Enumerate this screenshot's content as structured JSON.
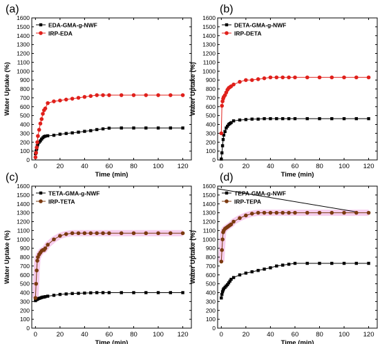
{
  "chart_data": [
    {
      "type": "line",
      "panel_label": "(a)",
      "xlabel": "Time (min)",
      "ylabel": "Water Uptake (%)",
      "xlim": [
        -3,
        127
      ],
      "ylim": [
        0,
        1600
      ],
      "xticks": [
        0,
        20,
        40,
        60,
        80,
        100,
        120
      ],
      "yticks": [
        0,
        100,
        200,
        300,
        400,
        500,
        600,
        700,
        800,
        900,
        1000,
        1100,
        1200,
        1300,
        1400,
        1500,
        1600
      ],
      "legend_position": "top-left",
      "series": [
        {
          "name": "EDA-GMA-g-NWF",
          "color": "#000000",
          "marker": "square",
          "x": [
            0,
            0.5,
            1,
            1.5,
            2,
            3,
            4,
            5,
            6,
            7,
            8,
            10,
            15,
            20,
            25,
            30,
            35,
            40,
            45,
            50,
            55,
            60,
            70,
            80,
            90,
            100,
            110,
            120
          ],
          "y": [
            70,
            100,
            125,
            160,
            180,
            200,
            215,
            235,
            250,
            262,
            268,
            272,
            278,
            290,
            298,
            305,
            313,
            322,
            330,
            342,
            350,
            358,
            360,
            360,
            360,
            360,
            360,
            360
          ]
        },
        {
          "name": "IRP-EDA",
          "color": "#e0201b",
          "marker": "circle",
          "x": [
            0,
            0.5,
            1,
            1.5,
            2,
            3,
            4,
            5,
            6,
            7,
            8,
            10,
            15,
            20,
            25,
            30,
            35,
            40,
            45,
            50,
            55,
            60,
            70,
            80,
            90,
            100,
            110,
            120
          ],
          "y": [
            30,
            80,
            140,
            200,
            270,
            340,
            410,
            460,
            520,
            560,
            580,
            640,
            660,
            670,
            680,
            690,
            700,
            710,
            720,
            730,
            730,
            730,
            730,
            730,
            730,
            730,
            730,
            730
          ]
        }
      ]
    },
    {
      "type": "line",
      "panel_label": "(b)",
      "xlabel": "Time (min)",
      "ylabel": "Water Uptake (%)",
      "xlim": [
        -3,
        127
      ],
      "ylim": [
        0,
        1600
      ],
      "xticks": [
        0,
        20,
        40,
        60,
        80,
        100,
        120
      ],
      "yticks": [
        0,
        100,
        200,
        300,
        400,
        500,
        600,
        700,
        800,
        900,
        1000,
        1100,
        1200,
        1300,
        1400,
        1500,
        1600
      ],
      "legend_position": "top-left",
      "series": [
        {
          "name": "DETA-GMA-g-NWF",
          "color": "#000000",
          "marker": "square",
          "x": [
            0,
            0.5,
            1,
            1.5,
            2,
            3,
            4,
            5,
            6,
            7,
            8,
            10,
            15,
            20,
            25,
            30,
            35,
            40,
            45,
            50,
            55,
            60,
            70,
            80,
            90,
            100,
            110,
            120
          ],
          "y": [
            10,
            80,
            160,
            230,
            280,
            320,
            360,
            380,
            400,
            410,
            420,
            440,
            450,
            455,
            460,
            460,
            465,
            465,
            465,
            465,
            465,
            465,
            465,
            465,
            465,
            465,
            465,
            465
          ]
        },
        {
          "name": "IRP-DETA",
          "color": "#e0201b",
          "marker": "circle",
          "x": [
            0,
            0.5,
            1,
            1.5,
            2,
            3,
            4,
            5,
            6,
            7,
            8,
            10,
            15,
            20,
            25,
            30,
            35,
            40,
            45,
            50,
            55,
            60,
            70,
            80,
            90,
            100,
            110,
            120
          ],
          "y": [
            300,
            610,
            660,
            690,
            710,
            730,
            760,
            790,
            810,
            820,
            830,
            850,
            880,
            900,
            900,
            910,
            920,
            930,
            930,
            930,
            930,
            930,
            930,
            930,
            930,
            930,
            930,
            930
          ]
        }
      ]
    },
    {
      "type": "line",
      "panel_label": "(c)",
      "xlabel": "Time (min)",
      "ylabel": "Water Uptake (%)",
      "xlim": [
        -3,
        127
      ],
      "ylim": [
        0,
        1600
      ],
      "xticks": [
        0,
        20,
        40,
        60,
        80,
        100,
        120
      ],
      "yticks": [
        0,
        100,
        200,
        300,
        400,
        500,
        600,
        700,
        800,
        900,
        1000,
        1100,
        1200,
        1300,
        1400,
        1500,
        1600
      ],
      "legend_position": "top-left",
      "series": [
        {
          "name": "TETA-GMA-g-NWF",
          "color": "#000000",
          "marker": "square",
          "x": [
            0,
            0.5,
            1,
            1.5,
            2,
            3,
            4,
            5,
            6,
            7,
            8,
            10,
            15,
            20,
            25,
            30,
            35,
            40,
            45,
            50,
            55,
            60,
            70,
            80,
            90,
            100,
            110,
            120
          ],
          "y": [
            310,
            320,
            325,
            325,
            330,
            335,
            340,
            345,
            350,
            350,
            355,
            360,
            370,
            380,
            385,
            390,
            392,
            395,
            398,
            400,
            400,
            400,
            400,
            400,
            400,
            400,
            400,
            400
          ]
        },
        {
          "name": "IRP-TETA",
          "color": "#7b3a10",
          "marker": "circle",
          "x": [
            0,
            0.5,
            1,
            1.5,
            2,
            3,
            4,
            5,
            6,
            7,
            8,
            10,
            15,
            20,
            25,
            30,
            35,
            40,
            45,
            50,
            55,
            60,
            70,
            80,
            90,
            100,
            110,
            120
          ],
          "y": [
            340,
            500,
            650,
            760,
            800,
            830,
            850,
            870,
            880,
            880,
            900,
            940,
            1000,
            1040,
            1060,
            1070,
            1070,
            1070,
            1070,
            1070,
            1070,
            1070,
            1070,
            1070,
            1070,
            1070,
            1070,
            1070
          ]
        }
      ]
    },
    {
      "type": "line",
      "panel_label": "(d)",
      "xlabel": "Time (min)",
      "ylabel": "Water Uptake (%)",
      "xlim": [
        -3,
        127
      ],
      "ylim": [
        0,
        1600
      ],
      "xticks": [
        0,
        20,
        40,
        60,
        80,
        100,
        120
      ],
      "yticks": [
        0,
        100,
        200,
        300,
        400,
        500,
        600,
        700,
        800,
        900,
        1000,
        1100,
        1200,
        1300,
        1400,
        1500,
        1600
      ],
      "legend_position": "top-left",
      "series": [
        {
          "name": "TEPA-GMA-g-NWF",
          "color": "#000000",
          "marker": "square",
          "x": [
            0,
            0.5,
            1,
            1.5,
            2,
            3,
            4,
            5,
            6,
            7,
            8,
            10,
            15,
            20,
            25,
            30,
            35,
            40,
            45,
            50,
            55,
            60,
            70,
            80,
            90,
            100,
            110,
            120
          ],
          "y": [
            340,
            380,
            410,
            430,
            445,
            460,
            475,
            490,
            510,
            530,
            550,
            570,
            600,
            620,
            635,
            650,
            665,
            680,
            700,
            710,
            720,
            730,
            730,
            730,
            730,
            730,
            730,
            730
          ]
        },
        {
          "name": "IRP-TEPA",
          "color": "#7b3a10",
          "marker": "circle",
          "x": [
            0,
            0.5,
            1,
            1.5,
            2,
            3,
            4,
            5,
            6,
            7,
            8,
            10,
            15,
            20,
            25,
            30,
            35,
            40,
            45,
            50,
            55,
            60,
            70,
            80,
            90,
            100,
            110,
            120
          ],
          "y": [
            750,
            880,
            1000,
            1080,
            1100,
            1120,
            1130,
            1140,
            1150,
            1160,
            1170,
            1200,
            1240,
            1270,
            1290,
            1300,
            1300,
            1300,
            1300,
            1300,
            1300,
            1300,
            1300,
            1300,
            1300,
            1300,
            1300,
            1300
          ]
        }
      ],
      "annotations": [
        {
          "type": "line",
          "from": [
            -3,
            1570
          ],
          "to": [
            110,
            1310
          ],
          "color": "#000000"
        }
      ]
    }
  ]
}
